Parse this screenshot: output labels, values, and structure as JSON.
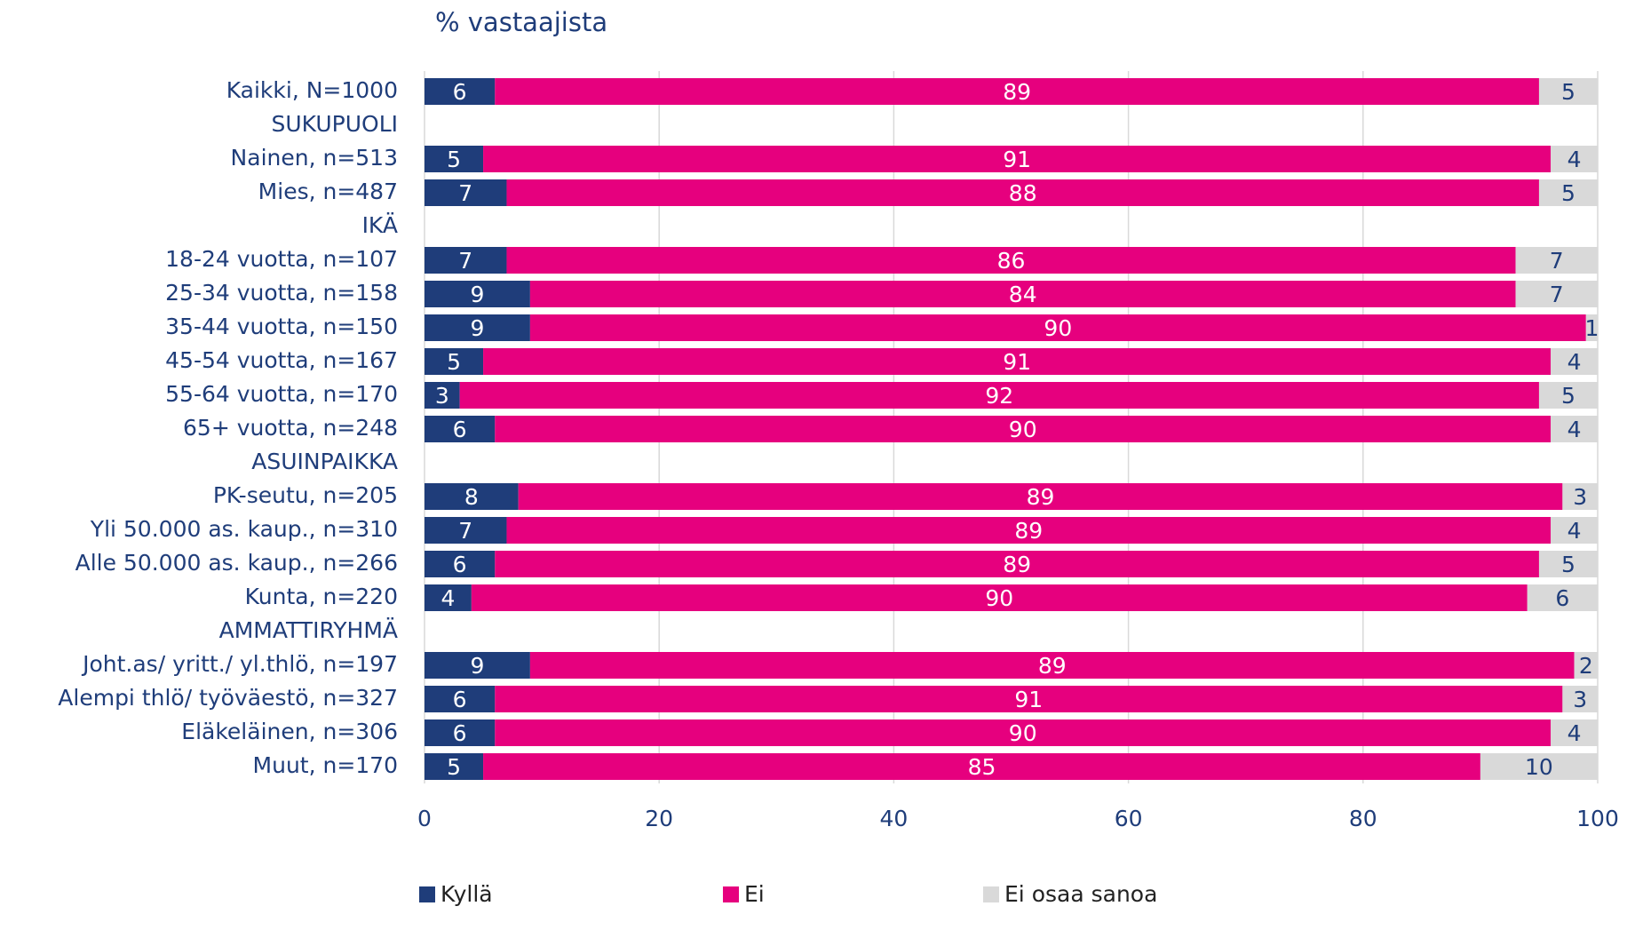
{
  "chart_data": {
    "type": "stacked_barh",
    "title": "% vastaajista",
    "categories": [
      "Kaikki, N=1000",
      "SUKUPUOLI",
      "Nainen, n=513",
      "Mies, n=487",
      "IKÄ",
      "18-24 vuotta, n=107",
      "25-34 vuotta, n=158",
      "35-44 vuotta, n=150",
      "45-54 vuotta, n=167",
      "55-64 vuotta, n=170",
      "65+ vuotta, n=248",
      "ASUINPAIKKA",
      "PK-seutu, n=205",
      "Yli 50.000 as. kaup., n=310",
      "Alle 50.000 as. kaup., n=266",
      "Kunta, n=220",
      "AMMATTIRYHMÄ",
      "Joht.as/ yritt./ yl.thlö, n=197",
      "Alempi thlö/ työväestö, n=327",
      "Eläkeläinen, n=306",
      "Muut, n=170"
    ],
    "series": [
      {
        "name": "Kyllä",
        "color": "#1f3d7a",
        "label_color": "#ffffff",
        "values": [
          6,
          null,
          5,
          7,
          null,
          7,
          9,
          9,
          5,
          3,
          6,
          null,
          8,
          7,
          6,
          4,
          null,
          9,
          6,
          6,
          5
        ]
      },
      {
        "name": "Ei",
        "color": "#e6007e",
        "label_color": "#ffffff",
        "values": [
          89,
          null,
          91,
          88,
          null,
          86,
          84,
          90,
          91,
          92,
          90,
          null,
          89,
          89,
          89,
          90,
          null,
          89,
          91,
          90,
          85
        ]
      },
      {
        "name": "Ei osaa sanoa",
        "color": "#d9d9d9",
        "label_color": "#1f3d7a",
        "values": [
          5,
          null,
          4,
          5,
          null,
          7,
          7,
          1,
          4,
          5,
          4,
          null,
          3,
          4,
          5,
          6,
          null,
          2,
          3,
          4,
          10
        ]
      }
    ],
    "xlim": [
      0,
      100
    ],
    "xticks": [
      0,
      20,
      40,
      60,
      80,
      100
    ],
    "grid": true,
    "legend": "bottom"
  }
}
